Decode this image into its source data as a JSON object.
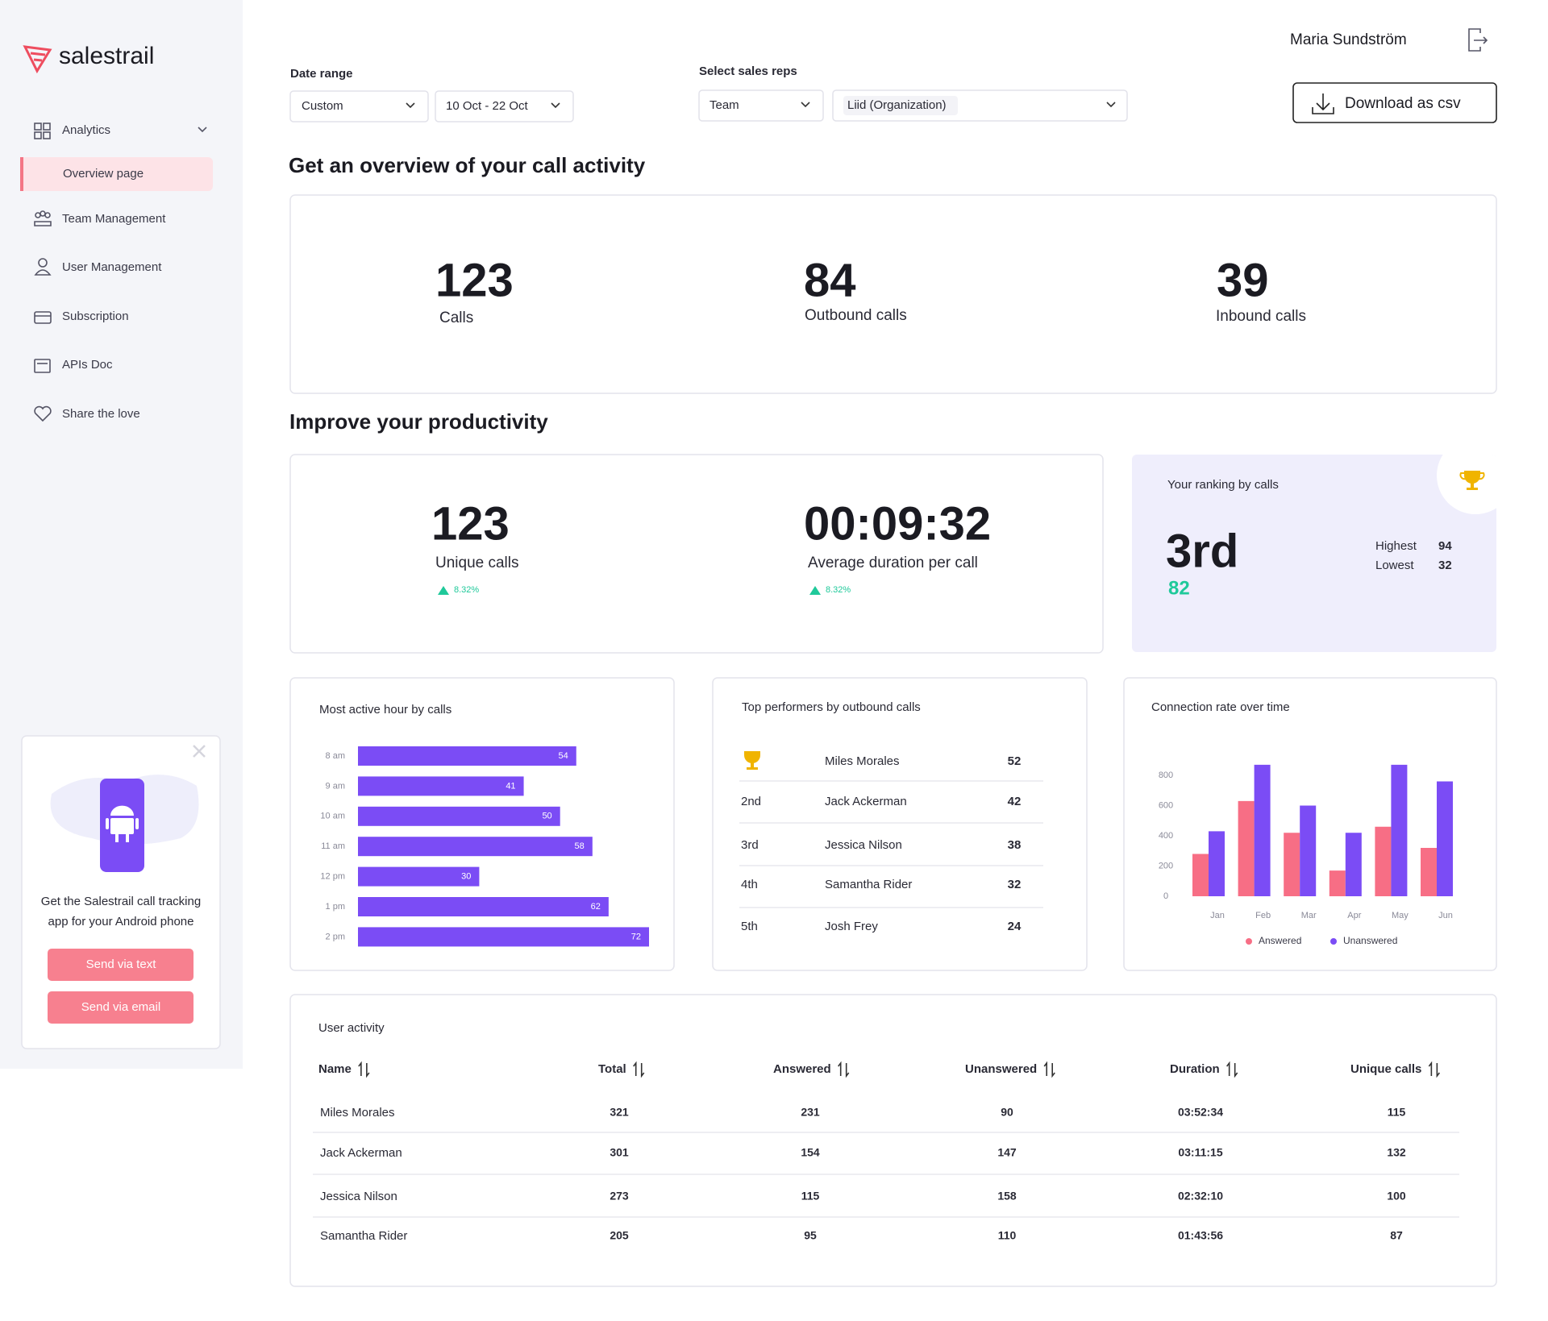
{
  "sidebar": {
    "logo": "salestrail",
    "nav": [
      "Analytics",
      "Overview page",
      "Team Management",
      "User Management",
      "Subscription",
      "APIs Doc",
      "Share the love"
    ]
  },
  "promo": {
    "lines": [
      "Get the Salestrail call tracking",
      "app for your Android phone"
    ],
    "buttons": [
      "Send via text",
      "Send via email"
    ]
  },
  "header": {
    "user": "Maria Sundström",
    "download": "Download as csv"
  },
  "filters": {
    "date_range": {
      "label": "Date range",
      "options": [
        "Custom",
        "10 Oct - 22 Oct"
      ]
    },
    "sales_reps": {
      "label": "Select sales reps",
      "options": [
        "Team",
        "Liid (Organization)"
      ]
    }
  },
  "overview": {
    "title": "Get an overview of your call activity",
    "stats": [
      {
        "value": 123,
        "label": "Calls"
      },
      {
        "value": 84,
        "label": "Outbound calls"
      },
      {
        "value": 39,
        "label": "Inbound calls"
      }
    ]
  },
  "productivity": {
    "title": "Improve your productivity",
    "stats": [
      {
        "value": 123,
        "label": "Unique calls",
        "change": "8.32%"
      },
      {
        "value": "00:09:32",
        "label": "Average duration per call",
        "change": "8.32%"
      }
    ],
    "ranking": {
      "title": "Your ranking by calls",
      "rank": "3rd",
      "calls": 82,
      "highest_label": "Highest",
      "highest": 94,
      "lowest_label": "Lowest",
      "lowest": 32
    }
  },
  "chart_data": [
    {
      "type": "hbar",
      "title": "Most active hour by calls",
      "categories": [
        "8 am",
        "9 am",
        "10 am",
        "11 am",
        "12 pm",
        "1 pm",
        "2 pm"
      ],
      "values": [
        54,
        41,
        50,
        58,
        30,
        62,
        72
      ],
      "color": "#7b4cf5"
    },
    {
      "type": "bar",
      "title": "Connection rate over time",
      "categories": [
        "Jan",
        "Feb",
        "Mar",
        "Apr",
        "May",
        "Jun"
      ],
      "series": [
        {
          "name": "Answered",
          "color": "#f76e85",
          "values": [
            280,
            630,
            420,
            170,
            460,
            320
          ]
        },
        {
          "name": "Unanswered",
          "color": "#7b4cf5",
          "values": [
            430,
            870,
            600,
            420,
            870,
            760
          ]
        }
      ],
      "ylim": [
        0,
        900
      ],
      "yticks": [
        0,
        200,
        400,
        600,
        800
      ],
      "grid": false
    }
  ],
  "top_performers": {
    "title": "Top performers by outbound calls",
    "rows": [
      {
        "name": "Miles Morales",
        "calls": 52
      },
      {
        "rank": "2nd",
        "name": "Jack Ackerman",
        "calls": 42
      },
      {
        "rank": "3rd",
        "name": "Jessica Nilson",
        "calls": 38
      },
      {
        "rank": "4th",
        "name": "Samantha Rider",
        "calls": 32
      },
      {
        "rank": "5th",
        "name": "Josh Frey",
        "calls": 24
      }
    ]
  },
  "user_activity": {
    "title": "User activity",
    "columns": [
      "Name",
      "Total",
      "Answered",
      "Unanswered",
      "Duration",
      "Unique calls"
    ],
    "rows": [
      [
        "Miles Morales",
        321,
        231,
        90,
        "03:52:34",
        115
      ],
      [
        "Jack Ackerman",
        301,
        154,
        147,
        "03:11:15",
        132
      ],
      [
        "Jessica Nilson",
        273,
        115,
        158,
        "02:32:10",
        100
      ],
      [
        "Samantha Rider",
        205,
        95,
        110,
        "01:43:56",
        87
      ]
    ]
  }
}
